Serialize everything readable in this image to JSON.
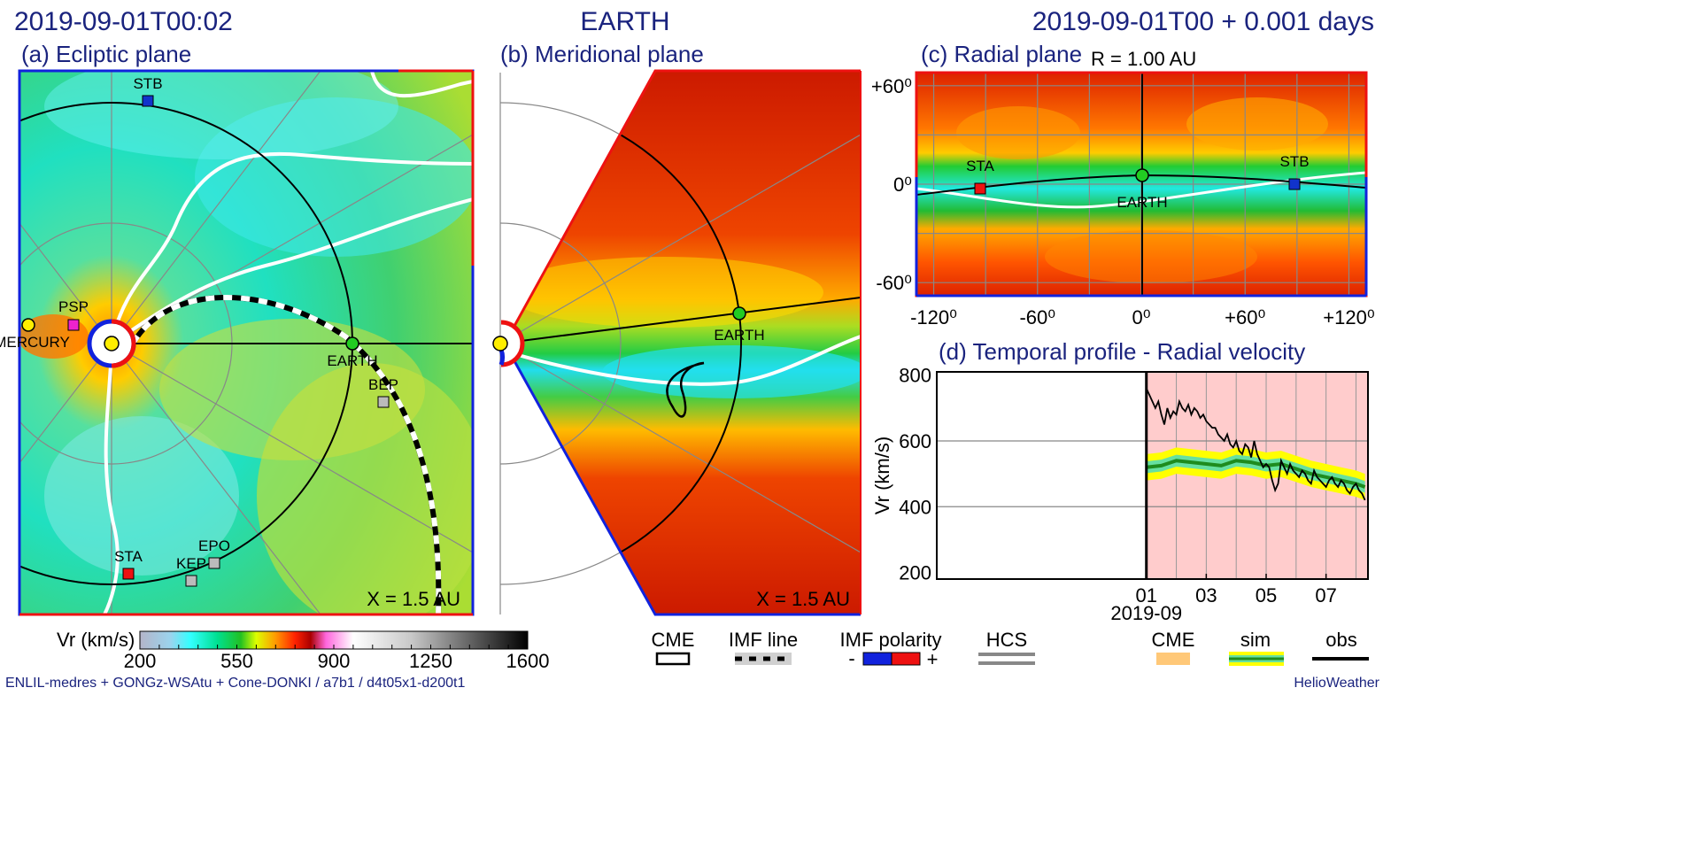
{
  "header": {
    "timestamp": "2019-09-01T00:02",
    "target": "EARTH",
    "run_time": "2019-09-01T00 +  0.001 days"
  },
  "panels": {
    "ecliptic": {
      "title": "(a) Ecliptic plane",
      "scale": "X = 1.5 AU"
    },
    "meridional": {
      "title": "(b) Meridional plane",
      "scale": "X = 1.5 AU"
    },
    "radial": {
      "title": "(c) Radial plane",
      "radius": "R = 1.00 AU"
    },
    "temporal": {
      "title": "(d) Temporal profile - Radial velocity"
    }
  },
  "bodies": {
    "stb": "STB",
    "sta": "STA",
    "earth": "EARTH",
    "psp": "PSP",
    "mercury": "MERCURY",
    "bep": "BEP",
    "epo": "EPO",
    "kep": "KEP"
  },
  "colors": {
    "earth": "#22cc22",
    "stb": "#1133cc",
    "sta": "#ee1111",
    "psp": "#ee22cc",
    "spacecraft": "#bbbbbb",
    "sun": "#ffee00",
    "frame_pos": "#ee1111",
    "frame_neg": "#1122dd",
    "obs": "#000000",
    "sim": "#1e8c1e",
    "sim_band": "#ffff00",
    "cme": "#ffc878",
    "bg_window": "#ffcccc"
  },
  "colorbar": {
    "label": "Vr (km/s)",
    "ticks": [
      "200",
      "550",
      "900",
      "1250",
      "1600"
    ]
  },
  "legend": {
    "cme_left": "CME",
    "imf_line": "IMF line",
    "imf_polarity": "IMF polarity",
    "minus": "-",
    "plus": "+",
    "hcs": "HCS",
    "cme_right": "CME",
    "sim": "sim",
    "obs": "obs"
  },
  "footer": {
    "left": "ENLIL-medres + GONGz-WSAtu + Cone-DONKI / a7b1 / d4t05x1-d200t1",
    "right": "HelioWeather"
  },
  "chart_data": [
    {
      "type": "heatmap",
      "title": "(c) Radial plane",
      "subtitle": "R = 1.00 AU",
      "x_ticks": [
        "-120⁰",
        "-60⁰",
        "0⁰",
        "+60⁰",
        "+120⁰"
      ],
      "y_ticks": [
        "+60⁰",
        "0⁰",
        "-60⁰"
      ],
      "xlim": [
        -130,
        130
      ],
      "ylim": [
        -68,
        68
      ]
    },
    {
      "type": "line",
      "title": "(d) Temporal profile - Radial velocity",
      "ylabel": "Vr (km/s)",
      "ylim": [
        180,
        810
      ],
      "xlim": [
        -7,
        7.4
      ],
      "y_ticks": [
        "200",
        "400",
        "600",
        "800"
      ],
      "x_ticks": [
        "01",
        "03",
        "05",
        "07"
      ],
      "x_tick_values": [
        0,
        2,
        4,
        6
      ],
      "x_sublabel": "2019-09",
      "grid": true,
      "series": [
        {
          "name": "obs",
          "x": [
            0,
            0.1,
            0.2,
            0.3,
            0.4,
            0.5,
            0.6,
            0.7,
            0.8,
            0.9,
            1.0,
            1.1,
            1.2,
            1.3,
            1.4,
            1.5,
            1.6,
            1.7,
            1.8,
            1.9,
            2.0,
            2.1,
            2.2,
            2.3,
            2.4,
            2.5,
            2.6,
            2.7,
            2.8,
            2.9,
            3.0,
            3.1,
            3.2,
            3.3,
            3.4,
            3.5,
            3.6,
            3.7,
            3.8,
            3.9,
            4.0,
            4.1,
            4.2,
            4.3,
            4.4,
            4.5,
            4.6,
            4.7,
            4.8,
            4.9,
            5.0,
            5.1,
            5.2,
            5.3,
            5.4,
            5.5,
            5.6,
            5.7,
            5.8,
            5.9,
            6.0,
            6.1,
            6.2,
            6.3,
            6.4,
            6.5,
            6.6,
            6.7,
            6.8,
            6.9,
            7.0,
            7.1,
            7.2,
            7.3
          ],
          "values": [
            760,
            740,
            720,
            700,
            720,
            680,
            650,
            700,
            670,
            690,
            680,
            720,
            700,
            690,
            710,
            680,
            700,
            690,
            670,
            680,
            660,
            650,
            640,
            640,
            620,
            610,
            600,
            620,
            590,
            580,
            600,
            570,
            560,
            590,
            580,
            550,
            600,
            560,
            540,
            520,
            530,
            520,
            480,
            450,
            470,
            540,
            520,
            500,
            530,
            510,
            500,
            490,
            510,
            500,
            480,
            470,
            510,
            490,
            480,
            470,
            460,
            480,
            490,
            470,
            460,
            480,
            470,
            450,
            440,
            460,
            470,
            450,
            440,
            420
          ]
        },
        {
          "name": "sim",
          "x": [
            0,
            0.5,
            1,
            1.5,
            2,
            2.5,
            3,
            3.5,
            4,
            4.5,
            5,
            5.5,
            6,
            6.5,
            7,
            7.3
          ],
          "values": [
            520,
            525,
            540,
            535,
            530,
            525,
            540,
            535,
            525,
            530,
            515,
            500,
            490,
            480,
            470,
            460
          ]
        }
      ]
    }
  ]
}
